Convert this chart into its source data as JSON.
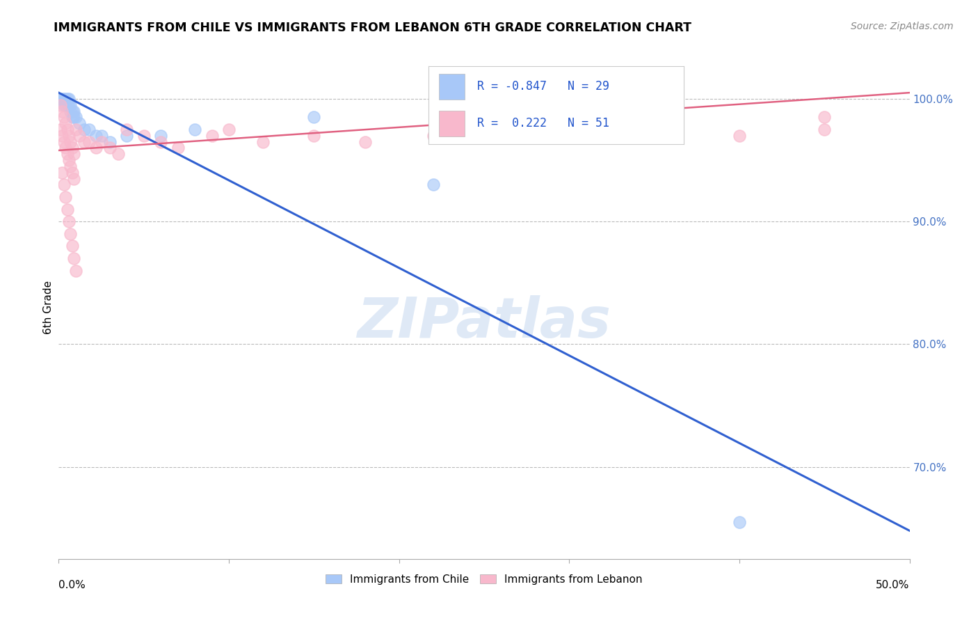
{
  "title": "IMMIGRANTS FROM CHILE VS IMMIGRANTS FROM LEBANON 6TH GRADE CORRELATION CHART",
  "source": "Source: ZipAtlas.com",
  "ylabel": "6th Grade",
  "chile_color": "#A8C8F8",
  "lebanon_color": "#F8B8CC",
  "chile_line_color": "#3060D0",
  "lebanon_line_color": "#E06080",
  "chile_R": -0.847,
  "chile_N": 29,
  "lebanon_R": 0.222,
  "lebanon_N": 51,
  "watermark": "ZIPatlas",
  "xlim": [
    0.0,
    0.5
  ],
  "ylim": [
    0.625,
    1.035
  ],
  "chile_scatter_x": [
    0.001,
    0.002,
    0.003,
    0.003,
    0.004,
    0.004,
    0.005,
    0.005,
    0.006,
    0.006,
    0.007,
    0.007,
    0.008,
    0.008,
    0.009,
    0.009,
    0.01,
    0.012,
    0.015,
    0.018,
    0.022,
    0.025,
    0.03,
    0.04,
    0.06,
    0.08,
    0.15,
    0.22,
    0.4
  ],
  "chile_scatter_y": [
    1.0,
    1.0,
    1.0,
    0.995,
    1.0,
    0.995,
    1.0,
    0.995,
    1.0,
    0.995,
    0.995,
    0.99,
    0.99,
    0.985,
    0.99,
    0.985,
    0.985,
    0.98,
    0.975,
    0.975,
    0.97,
    0.97,
    0.965,
    0.97,
    0.97,
    0.975,
    0.985,
    0.93,
    0.655
  ],
  "lebanon_scatter_x": [
    0.001,
    0.001,
    0.002,
    0.002,
    0.003,
    0.003,
    0.004,
    0.004,
    0.005,
    0.005,
    0.006,
    0.006,
    0.007,
    0.007,
    0.008,
    0.008,
    0.009,
    0.009,
    0.01,
    0.012,
    0.015,
    0.018,
    0.022,
    0.025,
    0.03,
    0.035,
    0.04,
    0.05,
    0.06,
    0.07,
    0.09,
    0.1,
    0.12,
    0.15,
    0.18,
    0.22,
    0.26,
    0.3,
    0.35,
    0.4,
    0.45,
    0.002,
    0.003,
    0.004,
    0.005,
    0.006,
    0.007,
    0.008,
    0.009,
    0.01,
    0.45
  ],
  "lebanon_scatter_y": [
    0.995,
    0.975,
    0.99,
    0.97,
    0.985,
    0.965,
    0.98,
    0.96,
    0.975,
    0.955,
    0.97,
    0.95,
    0.965,
    0.945,
    0.96,
    0.94,
    0.955,
    0.935,
    0.975,
    0.97,
    0.965,
    0.965,
    0.96,
    0.965,
    0.96,
    0.955,
    0.975,
    0.97,
    0.965,
    0.96,
    0.97,
    0.975,
    0.965,
    0.97,
    0.965,
    0.97,
    0.975,
    0.97,
    0.975,
    0.97,
    0.975,
    0.94,
    0.93,
    0.92,
    0.91,
    0.9,
    0.89,
    0.88,
    0.87,
    0.86,
    0.985
  ],
  "chile_trendline_x": [
    0.0,
    0.5
  ],
  "chile_trendline_y": [
    1.005,
    0.648
  ],
  "lebanon_trendline_x": [
    0.0,
    0.5
  ],
  "lebanon_trendline_y": [
    0.958,
    1.005
  ]
}
